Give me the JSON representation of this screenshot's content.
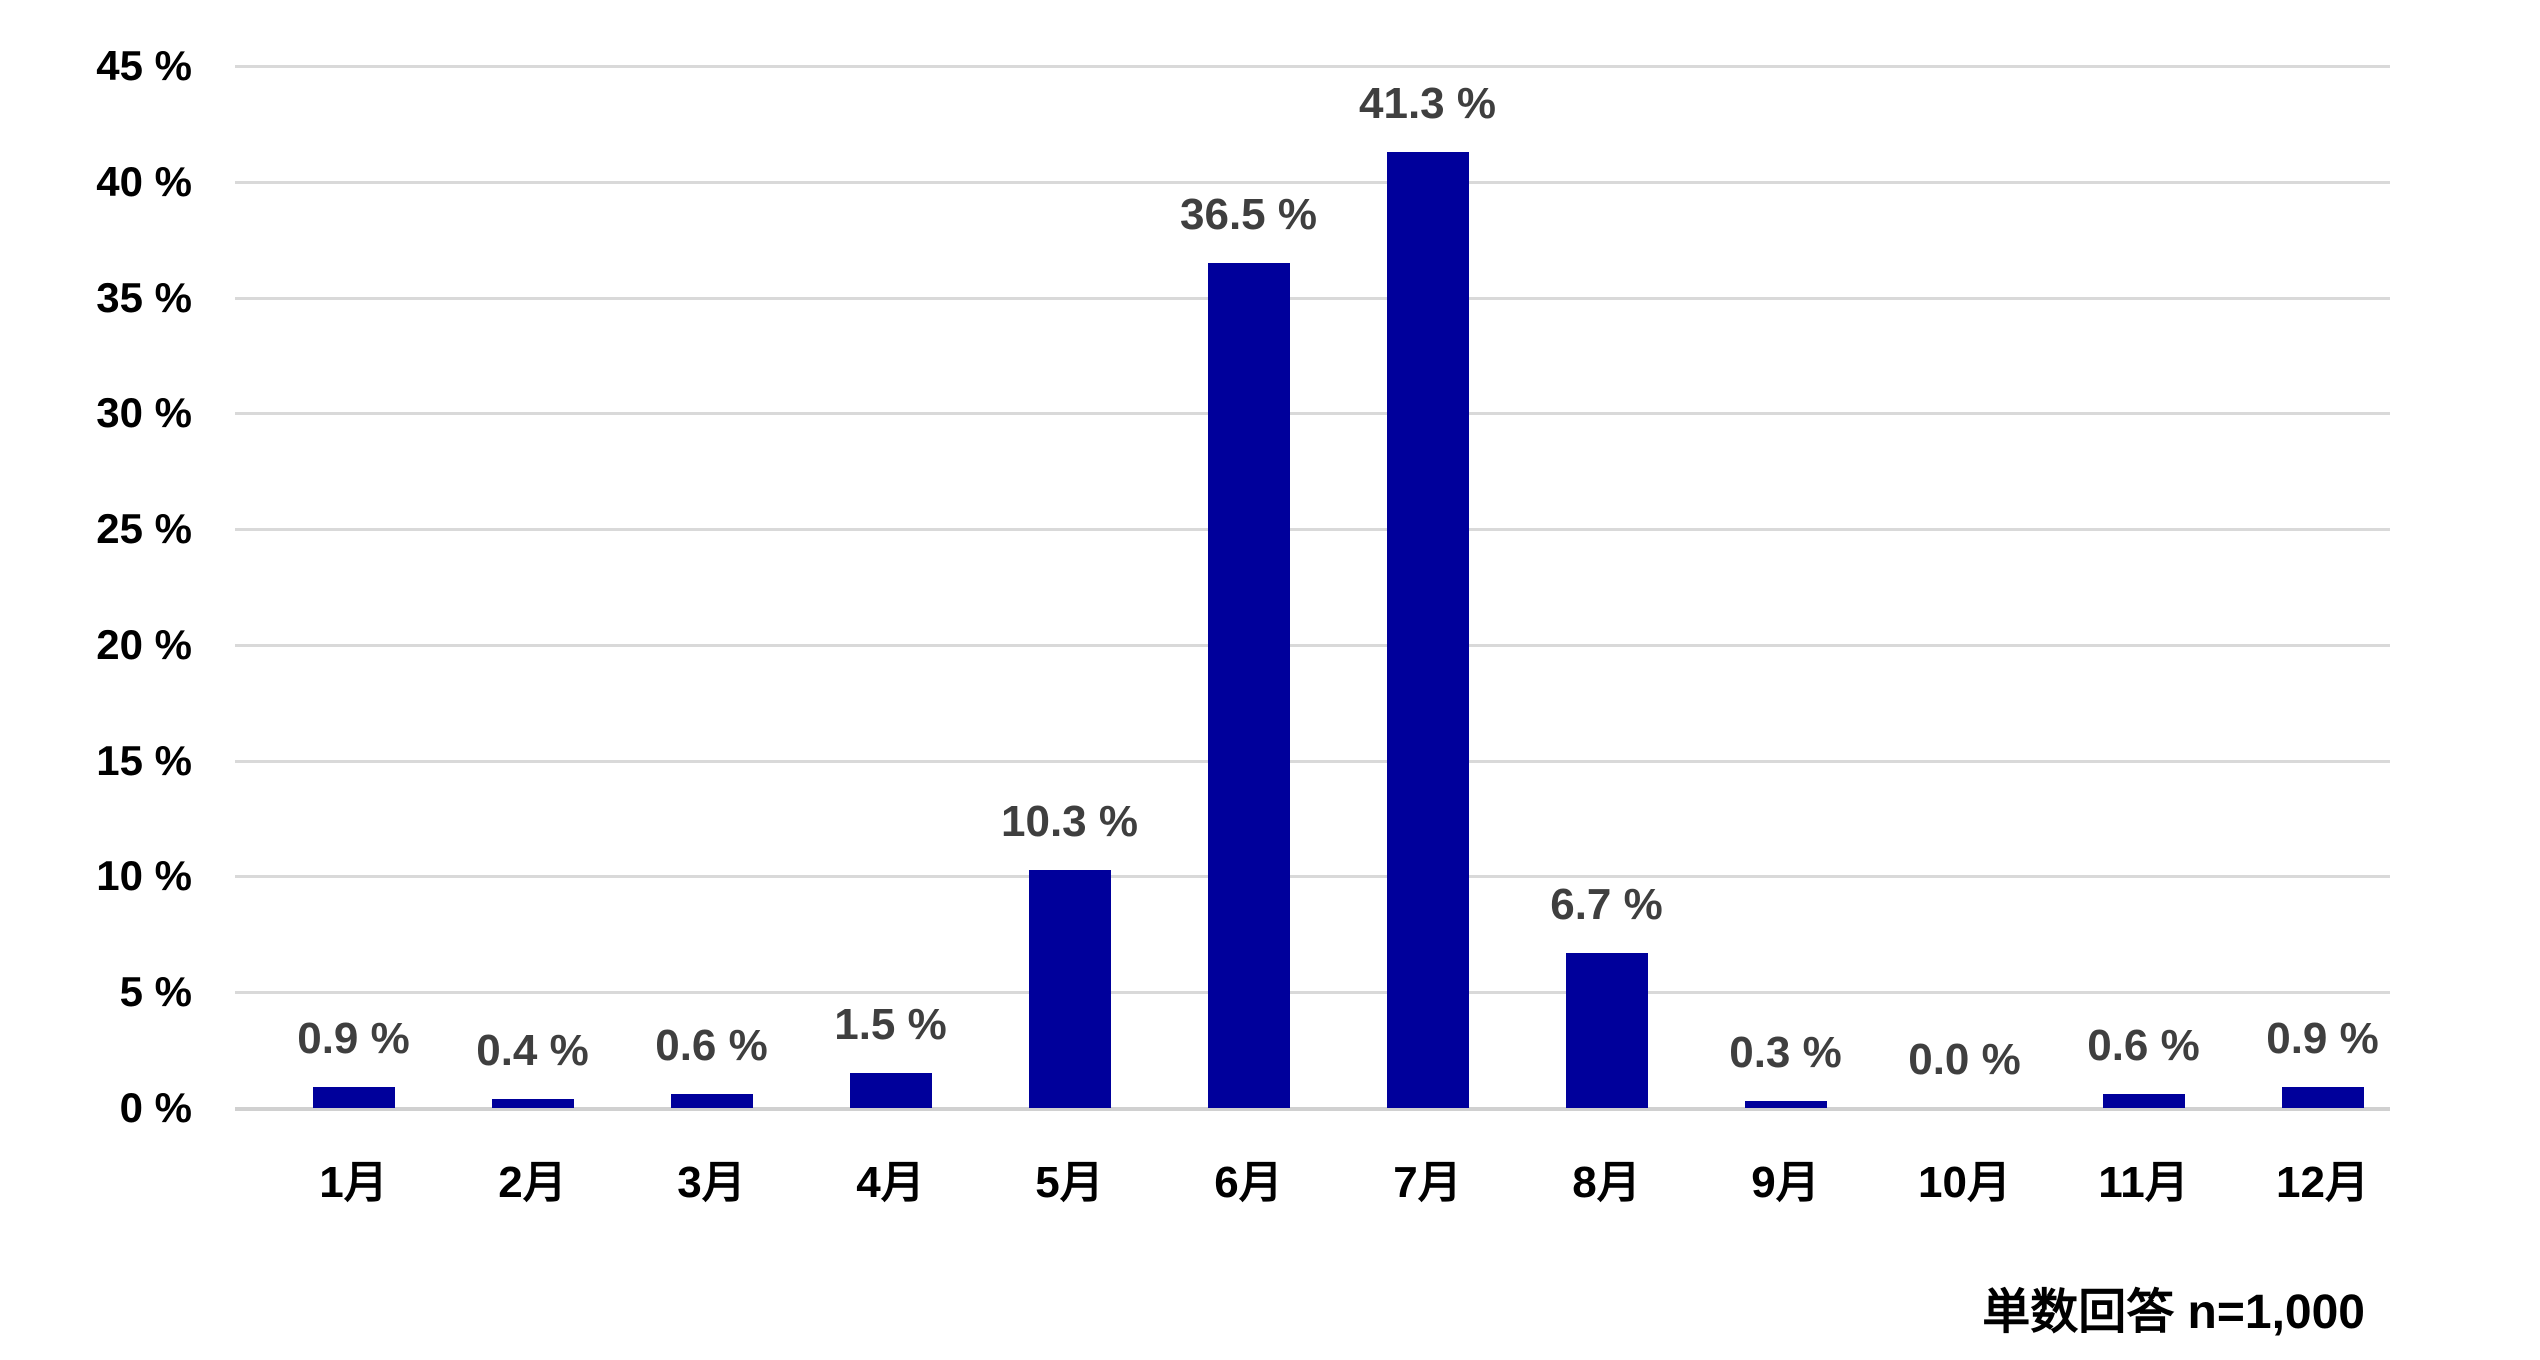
{
  "chart_data": {
    "type": "bar",
    "categories": [
      "1月",
      "2月",
      "3月",
      "4月",
      "5月",
      "6月",
      "7月",
      "8月",
      "9月",
      "10月",
      "11月",
      "12月"
    ],
    "values": [
      0.9,
      0.4,
      0.6,
      1.5,
      10.3,
      36.5,
      41.3,
      6.7,
      0.3,
      0.0,
      0.6,
      0.9
    ],
    "value_labels": [
      "0.9 %",
      "0.4 %",
      "0.6 %",
      "1.5 %",
      "10.3 %",
      "36.5 %",
      "41.3 %",
      "6.7 %",
      "0.3 %",
      "0.0 %",
      "0.6 %",
      "0.9 %"
    ],
    "title": "",
    "xlabel": "",
    "ylabel": "",
    "ylim": [
      0,
      45
    ],
    "y_tick_step": 5,
    "y_tick_labels": [
      "0 %",
      "5 %",
      "10 %",
      "15 %",
      "20 %",
      "25 %",
      "30 %",
      "35 %",
      "40 %",
      "45 %"
    ],
    "grid": "horizontal",
    "legend": "none",
    "annotation": "単数回答 n=1,000",
    "colors": {
      "bar": "#00009B",
      "gridline": "#D9D9D9",
      "axis_text": "#000000",
      "value_label_text": "#3F3F3F",
      "background": "#FFFFFF"
    }
  }
}
